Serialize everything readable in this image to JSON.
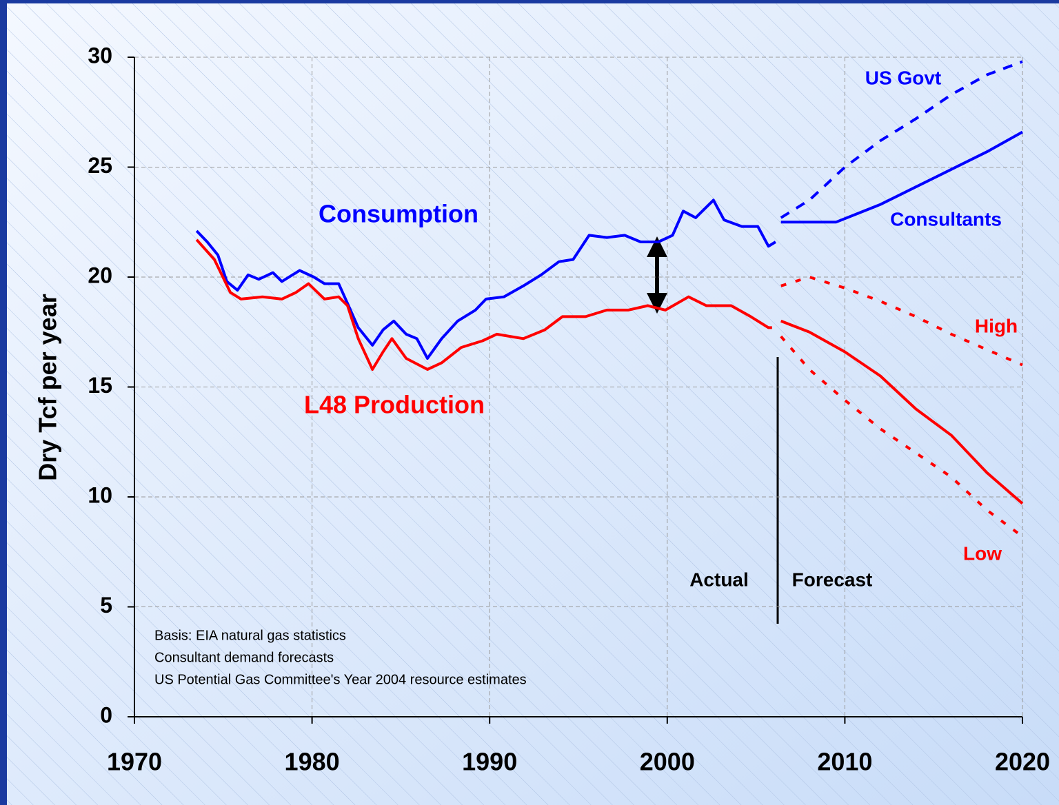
{
  "chart_data": {
    "type": "line",
    "ylabel": "Dry Tcf per year",
    "xlim": [
      1970,
      2020
    ],
    "xticks": [
      1970,
      1980,
      1990,
      2000,
      2010,
      2020
    ],
    "ylim": [
      0,
      30
    ],
    "yticks": [
      0,
      5,
      10,
      15,
      20,
      25,
      30
    ],
    "grid": true,
    "series": [
      {
        "name": "Consumption",
        "color": "#0000ff",
        "style": "solid",
        "x": [
          1973.5,
          1974.1,
          1974.7,
          1975.2,
          1975.8,
          1976.4,
          1977,
          1977.8,
          1978.3,
          1979.3,
          1980.1,
          1980.7,
          1981.5,
          1982,
          1982.6,
          1983.4,
          1984,
          1984.6,
          1985.3,
          1985.9,
          1986.5,
          1987.3,
          1988.2,
          1989.2,
          1989.8,
          1990.8,
          1991.9,
          1992.9,
          1993.9,
          1994.7,
          1995.6,
          1996.6,
          1997.6,
          1998.5,
          1999.5,
          2000.3,
          2000.9,
          2001.6,
          2002.6,
          2003.2,
          2004.2,
          2005.1,
          2005.7,
          2006.1
        ],
        "values": [
          22.1,
          21.6,
          21.0,
          19.8,
          19.4,
          20.1,
          19.9,
          20.2,
          19.8,
          20.3,
          20.0,
          19.7,
          19.7,
          18.8,
          17.7,
          16.9,
          17.6,
          18.0,
          17.4,
          17.2,
          16.3,
          17.2,
          18.0,
          18.5,
          19.0,
          19.1,
          19.6,
          20.1,
          20.7,
          20.8,
          21.9,
          21.8,
          21.9,
          21.6,
          21.6,
          21.9,
          23.0,
          22.7,
          23.5,
          22.6,
          22.3,
          22.3,
          21.4,
          21.6
        ]
      },
      {
        "name": "L48 Production",
        "color": "#ff0000",
        "style": "solid",
        "x": [
          1973.5,
          1974.5,
          1975.4,
          1976,
          1977.2,
          1978.3,
          1979.1,
          1979.8,
          1980.7,
          1981.5,
          1982,
          1982.6,
          1983.4,
          1984,
          1984.5,
          1985.3,
          1986.5,
          1987.3,
          1988.4,
          1989.6,
          1990.4,
          1991.9,
          1993.1,
          1994.1,
          1995.4,
          1996.6,
          1997.8,
          1998.9,
          1999.9,
          2001.2,
          2002.2,
          2003.6,
          2004.7,
          2005.7,
          2005.9
        ],
        "values": [
          21.7,
          20.8,
          19.3,
          19.0,
          19.1,
          19.0,
          19.3,
          19.7,
          19.0,
          19.1,
          18.7,
          17.2,
          15.8,
          16.6,
          17.2,
          16.3,
          15.8,
          16.1,
          16.8,
          17.1,
          17.4,
          17.2,
          17.6,
          18.2,
          18.2,
          18.5,
          18.5,
          18.7,
          18.5,
          19.1,
          18.7,
          18.7,
          18.2,
          17.7,
          17.7
        ]
      },
      {
        "name": "US Govt",
        "color": "#0000ff",
        "style": "dashed",
        "x": [
          2006.4,
          2008,
          2010,
          2012,
          2014,
          2016,
          2018,
          2020
        ],
        "values": [
          22.7,
          23.5,
          25.0,
          26.2,
          27.2,
          28.3,
          29.2,
          29.8
        ]
      },
      {
        "name": "Consultants",
        "color": "#0000ff",
        "style": "solid",
        "x": [
          2006.4,
          2009.5,
          2012,
          2014,
          2016,
          2018,
          2020
        ],
        "values": [
          22.5,
          22.5,
          23.3,
          24.1,
          24.9,
          25.7,
          26.6
        ]
      },
      {
        "name": "High",
        "color": "#ff0000",
        "style": "dotted",
        "x": [
          2006.4,
          2008,
          2010,
          2012,
          2014,
          2016,
          2018,
          2020
        ],
        "values": [
          19.6,
          20.0,
          19.5,
          18.9,
          18.2,
          17.4,
          16.7,
          16.0
        ]
      },
      {
        "color": "#ff0000",
        "style": "solid",
        "x": [
          2006.4,
          2008,
          2010,
          2012,
          2014,
          2016,
          2018,
          2020
        ],
        "values": [
          18.0,
          17.5,
          16.6,
          15.5,
          14.0,
          12.8,
          11.1,
          9.7
        ]
      },
      {
        "name": "Low",
        "color": "#ff0000",
        "style": "dotted",
        "x": [
          2006.4,
          2008,
          2010,
          2012,
          2014,
          2016,
          2018,
          2020
        ],
        "values": [
          17.3,
          15.8,
          14.4,
          13.1,
          12.0,
          10.9,
          9.4,
          8.2
        ]
      }
    ],
    "annotations": [
      "Actual",
      "Forecast"
    ],
    "notes": [
      "Basis: EIA natural gas statistics",
      "Consultant demand forecasts",
      "US Potential Gas Committee's Year 2004 resource estimates"
    ]
  }
}
